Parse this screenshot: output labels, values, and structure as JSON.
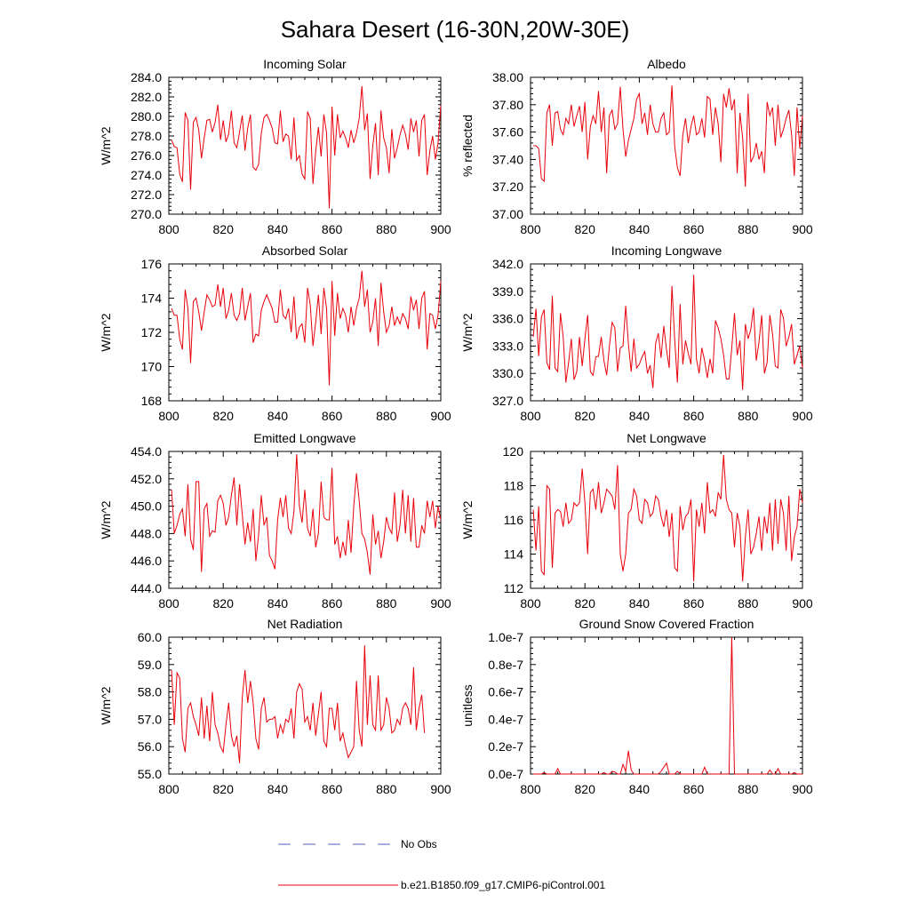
{
  "title": "Sahara Desert (16-30N,20W-30E)",
  "legend": {
    "obs_label": "No Obs",
    "obs_color": "#4f5bbd",
    "model_label": "b.e21.B1850.f09_g17.CMIP6-piControl.001",
    "model_color": "#e8000b"
  },
  "chart_data": [
    {
      "type": "line",
      "title": "Incoming Solar",
      "ylabel": "W/m^2",
      "xlim": [
        800,
        900
      ],
      "ylim": [
        270,
        284
      ],
      "xticks": [
        "800",
        "820",
        "840",
        "860",
        "880",
        "900"
      ],
      "yticks": [
        "270.0",
        "272.0",
        "274.0",
        "276.0",
        "278.0",
        "280.0",
        "282.0",
        "284.0"
      ],
      "x_start": 801,
      "values": [
        277.6,
        276.9,
        276.8,
        274.1,
        273.3,
        280.4,
        279.6,
        272.5,
        279.4,
        279.9,
        278.6,
        275.7,
        277.8,
        279.6,
        279.7,
        278.4,
        279.4,
        281.2,
        277.6,
        279.6,
        277.4,
        278.2,
        280.6,
        277.3,
        276.8,
        278.4,
        280.1,
        276.5,
        278.8,
        280.2,
        274.8,
        274.5,
        275.1,
        278.3,
        279.9,
        280.2,
        279.6,
        278.8,
        277.3,
        277.2,
        280.6,
        277.4,
        278.2,
        278.0,
        275.6,
        279.9,
        275.5,
        276.0,
        274.1,
        273.6,
        280.5,
        279.8,
        273.1,
        276.4,
        278.9,
        275.9,
        280.2,
        278.3,
        270.6,
        281.0,
        276.0,
        280.2,
        277.8,
        278.5,
        277.8,
        276.8,
        278.6,
        277.3,
        278.3,
        279.8,
        283.1,
        278.6,
        280.3,
        273.6,
        277.0,
        279.3,
        274.0,
        280.6,
        277.8,
        276.8,
        274.2,
        278.7,
        275.7,
        276.8,
        278.1,
        279.1,
        278.2,
        276.6,
        279.8,
        278.4,
        279.6,
        275.9,
        279.6,
        280.2,
        274.0,
        276.5,
        278.0,
        275.6,
        277.3,
        281.1
      ]
    },
    {
      "type": "line",
      "title": "Albedo",
      "ylabel": "% reflected",
      "xlim": [
        800,
        900
      ],
      "ylim": [
        37.0,
        38.0
      ],
      "xticks": [
        "800",
        "820",
        "840",
        "860",
        "880",
        "900"
      ],
      "yticks": [
        "37.00",
        "37.20",
        "37.40",
        "37.60",
        "37.80",
        "38.00"
      ],
      "x_start": 801,
      "values": [
        37.5,
        37.5,
        37.48,
        37.26,
        37.24,
        37.74,
        37.8,
        37.5,
        37.74,
        37.75,
        37.62,
        37.58,
        37.7,
        37.66,
        37.8,
        37.64,
        37.72,
        37.79,
        37.6,
        37.82,
        37.4,
        37.64,
        37.72,
        37.66,
        37.9,
        37.6,
        37.78,
        37.3,
        37.72,
        37.76,
        37.62,
        37.66,
        37.93,
        37.62,
        37.42,
        37.54,
        37.62,
        37.7,
        37.84,
        37.88,
        37.66,
        37.74,
        37.58,
        37.8,
        37.66,
        37.6,
        37.6,
        37.7,
        37.74,
        37.58,
        37.6,
        37.94,
        37.5,
        37.34,
        37.28,
        37.58,
        37.7,
        37.52,
        37.64,
        37.72,
        37.58,
        37.6,
        37.7,
        37.56,
        37.86,
        37.84,
        37.58,
        37.78,
        37.66,
        37.38,
        37.88,
        37.78,
        37.92,
        37.76,
        37.84,
        37.3,
        37.74,
        37.56,
        37.2,
        37.88,
        37.38,
        37.42,
        37.52,
        37.4,
        37.46,
        37.3,
        37.82,
        37.72,
        37.78,
        37.5,
        37.8,
        37.56,
        37.62,
        37.7,
        37.76,
        37.58,
        37.28,
        37.78,
        37.48,
        37.72
      ]
    },
    {
      "type": "line",
      "title": "Absorbed Solar",
      "ylabel": "W/m^2",
      "xlim": [
        800,
        900
      ],
      "ylim": [
        168,
        176
      ],
      "xticks": [
        "800",
        "820",
        "840",
        "860",
        "880",
        "900"
      ],
      "yticks": [
        "168",
        "170",
        "172",
        "174",
        "176"
      ],
      "x_start": 801,
      "values": [
        173.4,
        173.0,
        173.0,
        171.6,
        171.0,
        174.5,
        173.4,
        170.2,
        173.8,
        174.0,
        173.2,
        172.1,
        173.2,
        174.2,
        173.9,
        173.5,
        173.6,
        174.8,
        173.5,
        174.6,
        172.8,
        173.3,
        174.3,
        173.0,
        172.7,
        173.1,
        174.6,
        172.7,
        173.5,
        174.3,
        171.4,
        171.9,
        171.8,
        173.3,
        173.8,
        174.2,
        173.8,
        173.4,
        172.6,
        172.6,
        174.5,
        173.0,
        172.8,
        173.4,
        172.0,
        174.1,
        171.6,
        172.3,
        172.5,
        171.4,
        174.6,
        173.6,
        171.2,
        172.6,
        174.2,
        171.9,
        174.6,
        173.4,
        168.9,
        175.0,
        171.8,
        174.3,
        172.8,
        173.4,
        173.0,
        172.0,
        173.5,
        172.4,
        173.4,
        174.0,
        175.6,
        173.5,
        174.5,
        172.0,
        172.6,
        174.0,
        171.2,
        174.9,
        173.2,
        172.0,
        172.4,
        173.5,
        172.4,
        172.9,
        172.5,
        173.1,
        172.8,
        172.2,
        174.1,
        173.3,
        173.9,
        172.2,
        174.0,
        174.4,
        171.0,
        173.1,
        173.0,
        172.2,
        173.0,
        175.0
      ]
    },
    {
      "type": "line",
      "title": "Incoming Longwave",
      "ylabel": "W/m^2",
      "xlim": [
        800,
        900
      ],
      "ylim": [
        327,
        342
      ],
      "xticks": [
        "800",
        "820",
        "840",
        "860",
        "880",
        "900"
      ],
      "yticks": [
        "327.0",
        "330.0",
        "333.0",
        "336.0",
        "339.0",
        "342.0"
      ],
      "x_start": 801,
      "values": [
        334.0,
        337.1,
        331.9,
        336.2,
        337.0,
        331.2,
        330.4,
        338.5,
        330.6,
        330.2,
        336.6,
        334.0,
        329.0,
        331.2,
        333.8,
        329.3,
        330.2,
        334.0,
        330.8,
        333.8,
        336.4,
        330.2,
        329.8,
        331.8,
        331.9,
        334.0,
        331.4,
        329.8,
        333.0,
        335.6,
        335.0,
        330.2,
        332.8,
        333.0,
        337.4,
        333.2,
        330.2,
        333.8,
        330.6,
        331.0,
        331.8,
        332.4,
        330.0,
        330.9,
        328.4,
        333.3,
        334.4,
        331.7,
        335.2,
        332.6,
        330.6,
        339.6,
        333.8,
        329.0,
        337.6,
        331.0,
        333.6,
        332.2,
        331.0,
        340.8,
        331.6,
        330.0,
        332.8,
        331.4,
        329.5,
        331.6,
        330.0,
        335.8,
        335.0,
        333.8,
        332.0,
        329.4,
        329.4,
        332.8,
        336.6,
        332.0,
        333.6,
        328.2,
        335.4,
        333.8,
        334.8,
        337.2,
        331.4,
        333.4,
        336.4,
        330.0,
        331.2,
        336.4,
        334.3,
        330.8,
        330.6,
        337.0,
        336.1,
        333.0,
        334.0,
        335.4,
        331.0,
        332.0,
        333.0,
        330.6
      ]
    },
    {
      "type": "line",
      "title": "Emitted Longwave",
      "ylabel": "W/m^2",
      "xlim": [
        800,
        900
      ],
      "ylim": [
        444,
        454
      ],
      "xticks": [
        "800",
        "820",
        "840",
        "860",
        "880",
        "900"
      ],
      "yticks": [
        "444.0",
        "446.0",
        "448.0",
        "450.0",
        "452.0",
        "454.0"
      ],
      "x_start": 801,
      "values": [
        451.2,
        448.0,
        448.6,
        449.4,
        449.8,
        447.8,
        451.6,
        447.6,
        446.8,
        451.8,
        451.8,
        445.2,
        449.8,
        450.2,
        447.8,
        448.2,
        448.1,
        450.4,
        450.8,
        450.2,
        448.6,
        449.2,
        450.8,
        452.1,
        448.6,
        451.6,
        449.4,
        447.2,
        448.8,
        447.4,
        449.8,
        446.0,
        447.9,
        450.8,
        448.6,
        449.2,
        446.4,
        446.0,
        445.4,
        449.0,
        450.6,
        449.2,
        450.8,
        448.4,
        448.0,
        449.6,
        453.8,
        450.0,
        448.8,
        451.2,
        448.4,
        447.8,
        449.8,
        447.0,
        448.0,
        451.8,
        449.2,
        449.0,
        449.0,
        452.8,
        447.2,
        447.8,
        446.2,
        447.4,
        446.4,
        449.0,
        446.6,
        450.0,
        452.4,
        450.4,
        448.0,
        447.6,
        446.6,
        445.0,
        449.4,
        447.2,
        448.2,
        446.2,
        447.4,
        449.2,
        448.4,
        448.0,
        451.0,
        447.4,
        448.6,
        451.2,
        448.0,
        450.8,
        447.4,
        450.6,
        447.0,
        447.0,
        448.6,
        448.0,
        450.4,
        449.2,
        450.4,
        448.4,
        450.0,
        449.0
      ]
    },
    {
      "type": "line",
      "title": "Net Longwave",
      "ylabel": "W/m^2",
      "xlim": [
        800,
        900
      ],
      "ylim": [
        112,
        120
      ],
      "xticks": [
        "800",
        "820",
        "840",
        "860",
        "880",
        "900"
      ],
      "yticks": [
        "112",
        "114",
        "116",
        "118",
        "120"
      ],
      "x_start": 801,
      "values": [
        116.6,
        114.2,
        116.8,
        113.0,
        112.8,
        118.0,
        117.8,
        113.2,
        116.4,
        116.6,
        116.5,
        115.6,
        117.0,
        115.8,
        116.0,
        117.0,
        116.8,
        117.0,
        119.0,
        117.0,
        114.0,
        117.6,
        117.8,
        116.6,
        118.2,
        116.4,
        117.0,
        117.8,
        117.6,
        117.4,
        116.6,
        119.2,
        114.0,
        113.0,
        114.0,
        116.4,
        116.6,
        117.8,
        117.4,
        116.0,
        115.8,
        117.2,
        117.0,
        116.2,
        116.4,
        117.4,
        117.2,
        116.2,
        115.6,
        116.6,
        115.0,
        116.4,
        113.2,
        113.0,
        116.8,
        115.4,
        116.2,
        116.4,
        117.2,
        112.4,
        116.6,
        115.6,
        117.0,
        115.2,
        118.2,
        116.4,
        116.6,
        116.2,
        117.6,
        117.2,
        119.8,
        117.2,
        116.6,
        116.4,
        114.4,
        116.4,
        115.6,
        112.4,
        115.0,
        116.6,
        114.0,
        114.4,
        115.2,
        116.2,
        114.2,
        116.2,
        115.2,
        117.0,
        114.2,
        117.2,
        114.6,
        117.2,
        116.4,
        114.2,
        117.4,
        113.6,
        115.0,
        115.6,
        117.8,
        117.0
      ]
    },
    {
      "type": "line",
      "title": "Net Radiation",
      "ylabel": "W/m^2",
      "xlim": [
        800,
        900
      ],
      "ylim": [
        55,
        60
      ],
      "xticks": [
        "800",
        "820",
        "840",
        "860",
        "880",
        "900"
      ],
      "yticks": [
        "55.0",
        "56.0",
        "57.0",
        "58.0",
        "59.0",
        "60.0"
      ],
      "x_start": 801,
      "values": [
        58.8,
        56.8,
        58.7,
        58.5,
        56.3,
        55.8,
        57.4,
        57.6,
        57.1,
        56.8,
        56.4,
        57.8,
        56.3,
        57.5,
        56.2,
        58.0,
        56.8,
        56.5,
        56.0,
        55.8,
        56.8,
        57.6,
        56.4,
        56.0,
        56.4,
        55.4,
        57.8,
        58.8,
        57.6,
        58.4,
        57.6,
        56.3,
        55.9,
        57.4,
        57.8,
        56.9,
        57.0,
        57.0,
        57.1,
        56.3,
        56.8,
        56.5,
        57.0,
        56.9,
        57.4,
        56.3,
        58.0,
        58.3,
        58.1,
        56.9,
        57.1,
        56.6,
        57.6,
        56.4,
        57.2,
        58.0,
        56.2,
        56.0,
        57.4,
        57.4,
        56.6,
        57.6,
        56.2,
        56.5,
        56.0,
        55.6,
        55.8,
        56.0,
        58.4,
        56.6,
        56.0,
        59.7,
        56.8,
        58.6,
        56.8,
        56.6,
        58.6,
        56.6,
        56.8,
        57.8,
        57.4,
        56.5,
        56.6,
        57.0,
        56.8,
        57.4,
        57.6,
        57.4,
        56.8,
        58.9,
        56.6,
        57.4,
        57.9,
        56.5
      ]
    },
    {
      "type": "line",
      "title": "Ground Snow Covered Fraction",
      "ylabel": "unitless",
      "xlim": [
        800,
        900
      ],
      "ylim": [
        0,
        1e-07
      ],
      "xticks": [
        "800",
        "820",
        "840",
        "860",
        "880",
        "900"
      ],
      "yticks": [
        "0.0e-7",
        "0.2e-7",
        "0.4e-7",
        "0.6e-7",
        "0.8e-7",
        "1.0e-7"
      ],
      "x_start": 801,
      "values": [
        0,
        0,
        0,
        0,
        1e-09,
        0,
        0,
        0,
        0,
        4e-09,
        0,
        0,
        0,
        0,
        0,
        0,
        0,
        0,
        0,
        0,
        0,
        0,
        0,
        0,
        0,
        0,
        1e-09,
        0,
        0,
        2e-09,
        1.5e-09,
        0,
        0,
        7e-09,
        2e-09,
        1.7e-08,
        3e-09,
        0,
        0,
        0,
        0,
        0,
        0,
        0,
        0,
        0,
        0,
        2e-09,
        5e-09,
        8e-09,
        0,
        0,
        0,
        2e-09,
        0,
        0,
        0,
        0,
        0,
        0,
        0,
        0,
        0,
        5e-09,
        0,
        0,
        0,
        0,
        0,
        0,
        0,
        0,
        0,
        1e-07,
        0,
        0,
        0,
        0,
        0,
        0,
        0,
        0,
        0,
        0,
        0,
        0,
        0,
        3e-09,
        0,
        0,
        4e-09,
        0,
        0,
        0,
        0,
        0,
        1e-09,
        0,
        0,
        0
      ]
    }
  ]
}
